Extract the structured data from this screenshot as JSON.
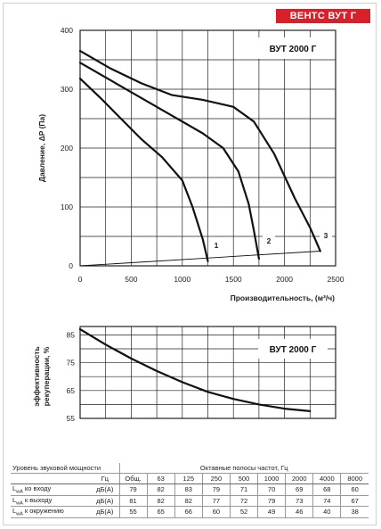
{
  "brand": "ВЕНТС ВУТ Г",
  "pressure_chart": {
    "model_label": "ВУТ 2000 Г",
    "ylabel": "Давление, ΔP (Па)",
    "xlabel": "Производительность, (м³/ч)",
    "x_ticks": [
      0,
      500,
      1000,
      1500,
      2000,
      2500
    ],
    "y_ticks": [
      0,
      100,
      200,
      300,
      400
    ],
    "curve_labels": [
      "1",
      "2",
      "3"
    ]
  },
  "efficiency_chart": {
    "model_label": "ВУТ 2000 Г",
    "ylabel_line1": "эффективность",
    "ylabel_line2": "рекуперации, %",
    "y_ticks": [
      55,
      65,
      75,
      85
    ]
  },
  "chart_data": [
    {
      "type": "line",
      "xlabel": "Производительность, (м³/ч)",
      "ylabel": "Давление, ΔP (Па)",
      "xlim": [
        0,
        2500
      ],
      "ylim": [
        0,
        400
      ],
      "grid": true,
      "series": [
        {
          "name": "1",
          "points": [
            [
              0,
              318
            ],
            [
              200,
              285
            ],
            [
              400,
              250
            ],
            [
              600,
              215
            ],
            [
              800,
              185
            ],
            [
              1000,
              145
            ],
            [
              1100,
              100
            ],
            [
              1200,
              45
            ],
            [
              1250,
              8
            ]
          ]
        },
        {
          "name": "2",
          "points": [
            [
              0,
              345
            ],
            [
              300,
              315
            ],
            [
              600,
              285
            ],
            [
              900,
              255
            ],
            [
              1200,
              225
            ],
            [
              1400,
              200
            ],
            [
              1550,
              160
            ],
            [
              1650,
              105
            ],
            [
              1700,
              60
            ],
            [
              1750,
              12
            ]
          ]
        },
        {
          "name": "3",
          "points": [
            [
              0,
              365
            ],
            [
              300,
              335
            ],
            [
              600,
              310
            ],
            [
              900,
              290
            ],
            [
              1200,
              282
            ],
            [
              1500,
              270
            ],
            [
              1700,
              245
            ],
            [
              1900,
              190
            ],
            [
              2100,
              115
            ],
            [
              2250,
              65
            ],
            [
              2350,
              25
            ]
          ]
        },
        {
          "name": "",
          "points": [
            [
              0,
              0
            ],
            [
              2350,
              25
            ]
          ]
        }
      ]
    },
    {
      "type": "line",
      "ylabel": "эффективность рекуперации, %",
      "xlim": [
        0,
        2500
      ],
      "ylim": [
        55,
        88
      ],
      "grid": true,
      "series": [
        {
          "name": "",
          "points": [
            [
              0,
              87
            ],
            [
              250,
              81.5
            ],
            [
              500,
              76.5
            ],
            [
              750,
              72
            ],
            [
              1000,
              68
            ],
            [
              1250,
              64.5
            ],
            [
              1500,
              62
            ],
            [
              1750,
              60
            ],
            [
              2000,
              58.5
            ],
            [
              2250,
              57.6
            ],
            [
              2500,
              57
            ]
          ]
        }
      ]
    }
  ],
  "sound_table": {
    "title": "Уровень звуковой мощности",
    "bands_title": "Октавные полосы частот, Гц",
    "unit_hz": "Гц",
    "columns": [
      "Общ.",
      "63",
      "125",
      "250",
      "500",
      "1000",
      "2000",
      "4000",
      "8000"
    ],
    "rows": [
      {
        "label": "L",
        "sub": "wA",
        "rest": " ко входу",
        "unit": "дБ(А)",
        "values": [
          "79",
          "82",
          "83",
          "79",
          "71",
          "70",
          "69",
          "68",
          "60"
        ]
      },
      {
        "label": "L",
        "sub": "wA",
        "rest": " к выходу",
        "unit": "дБ(А)",
        "values": [
          "81",
          "82",
          "82",
          "77",
          "72",
          "79",
          "73",
          "74",
          "67"
        ]
      },
      {
        "label": "L",
        "sub": "wA",
        "rest": " к окружению",
        "unit": "дБ(А)",
        "values": [
          "55",
          "65",
          "66",
          "60",
          "52",
          "49",
          "46",
          "40",
          "38"
        ]
      }
    ]
  }
}
